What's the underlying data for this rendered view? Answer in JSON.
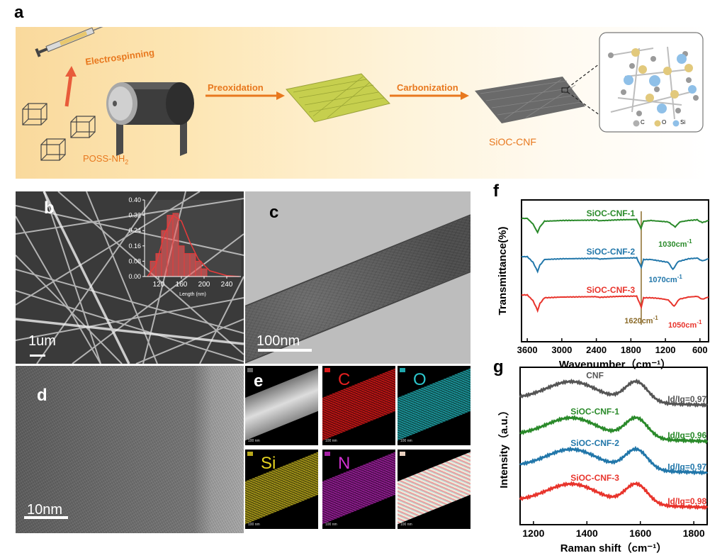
{
  "panel_labels": {
    "a": "a",
    "b": "b",
    "c": "c",
    "d": "d",
    "e": "e",
    "f": "f",
    "g": "g"
  },
  "schematic": {
    "electrospinning": "Electrospinning",
    "preoxidation": "Preoxidation",
    "carbonization": "Carbonization",
    "precursor_base": "POSS-NH",
    "precursor_sub": "2",
    "product": "SiOC-CNF",
    "legend": [
      {
        "label": "C",
        "color": "#b0b0b0"
      },
      {
        "label": "O",
        "color": "#e2c97c"
      },
      {
        "label": "Si",
        "color": "#8fc0e8"
      }
    ]
  },
  "sem": {
    "scale_bar": "1um"
  },
  "tem_c": {
    "scale_bar": "100nm"
  },
  "tem_d": {
    "scale_bar": "10nm"
  },
  "inset_histogram": {
    "chart_data": {
      "type": "bar",
      "xlabel": "Length  (nm)",
      "xticks": [
        120,
        160,
        200,
        240
      ],
      "yticks": [
        0.0,
        0.08,
        0.16,
        0.24,
        0.32,
        0.4
      ],
      "ytick_labels": [
        "0.00",
        "0.08",
        "0.16",
        "0.24",
        "0.32",
        "0.40"
      ],
      "xlim": [
        95,
        265
      ],
      "ylim": [
        0,
        0.4
      ],
      "bins": [
        {
          "x0": 105,
          "x1": 115,
          "v": 0.08
        },
        {
          "x0": 115,
          "x1": 125,
          "v": 0.12
        },
        {
          "x0": 125,
          "x1": 135,
          "v": 0.24
        },
        {
          "x0": 135,
          "x1": 145,
          "v": 0.32
        },
        {
          "x0": 145,
          "x1": 155,
          "v": 0.33
        },
        {
          "x0": 155,
          "x1": 165,
          "v": 0.16
        },
        {
          "x0": 165,
          "x1": 175,
          "v": 0.12
        },
        {
          "x0": 175,
          "x1": 185,
          "v": 0.12
        },
        {
          "x0": 185,
          "x1": 195,
          "v": 0.08
        },
        {
          "x0": 195,
          "x1": 205,
          "v": 0.04
        }
      ],
      "fit": [
        [
          100,
          0.0
        ],
        [
          115,
          0.06
        ],
        [
          130,
          0.22
        ],
        [
          145,
          0.32
        ],
        [
          160,
          0.29
        ],
        [
          175,
          0.18
        ],
        [
          190,
          0.09
        ],
        [
          210,
          0.03
        ],
        [
          240,
          0.005
        ],
        [
          262,
          0.0
        ]
      ]
    }
  },
  "eds": {
    "tiles": [
      {
        "label": "",
        "color": "#dddddd",
        "text_color": "#ffffff"
      },
      {
        "label": "C",
        "color": "#d81818",
        "text_color": "#e62020"
      },
      {
        "label": "O",
        "color": "#1fa8ad",
        "text_color": "#2cc6cc"
      },
      {
        "label": "Si",
        "color": "#b8a81c",
        "text_color": "#e6d420"
      },
      {
        "label": "N",
        "color": "#a420a4",
        "text_color": "#d030d0"
      },
      {
        "label": "",
        "color": "#e8d0c0",
        "text_color": "#ffffff"
      }
    ],
    "scale": "100 nm"
  },
  "chart_data": [
    {
      "type": "line",
      "xlabel": "Wavenumber（cm⁻¹）",
      "ylabel": "Transmittance(%)",
      "xlim": [
        3700,
        450
      ],
      "xticks": [
        3600,
        3000,
        2400,
        1800,
        1200,
        600
      ],
      "series": [
        {
          "name": "SiOC-CNF-1",
          "color": "#2a8a2a",
          "offset": 0.82,
          "points": [
            [
              3700,
              0.5
            ],
            [
              3600,
              0.5
            ],
            [
              3500,
              0.1
            ],
            [
              3420,
              -0.5
            ],
            [
              3380,
              -0.1
            ],
            [
              3300,
              0.3
            ],
            [
              3000,
              0.35
            ],
            [
              2400,
              0.38
            ],
            [
              2360,
              0.33
            ],
            [
              2000,
              0.4
            ],
            [
              1700,
              0.42
            ],
            [
              1625,
              -0.2
            ],
            [
              1580,
              0.3
            ],
            [
              1450,
              0.35
            ],
            [
              1300,
              0.3
            ],
            [
              1150,
              0.25
            ],
            [
              1030,
              -0.1
            ],
            [
              950,
              0.25
            ],
            [
              800,
              0.35
            ],
            [
              650,
              0.4
            ],
            [
              560,
              0.2
            ],
            [
              450,
              0.35
            ]
          ]
        },
        {
          "name": "SiOC-CNF-2",
          "color": "#2277aa",
          "offset": 0.55,
          "points": [
            [
              3700,
              0.5
            ],
            [
              3600,
              0.5
            ],
            [
              3500,
              0.1
            ],
            [
              3420,
              -0.55
            ],
            [
              3380,
              -0.1
            ],
            [
              3300,
              0.3
            ],
            [
              3000,
              0.35
            ],
            [
              2400,
              0.38
            ],
            [
              2360,
              0.33
            ],
            [
              2000,
              0.4
            ],
            [
              1700,
              0.42
            ],
            [
              1620,
              -0.25
            ],
            [
              1580,
              0.3
            ],
            [
              1450,
              0.3
            ],
            [
              1300,
              0.2
            ],
            [
              1150,
              0.1
            ],
            [
              1070,
              -0.4
            ],
            [
              980,
              0.15
            ],
            [
              800,
              0.35
            ],
            [
              650,
              0.4
            ],
            [
              560,
              0.2
            ],
            [
              450,
              0.35
            ]
          ]
        },
        {
          "name": "SiOC-CNF-3",
          "color": "#e8342c",
          "offset": 0.28,
          "points": [
            [
              3700,
              0.5
            ],
            [
              3600,
              0.5
            ],
            [
              3500,
              0.1
            ],
            [
              3420,
              -0.6
            ],
            [
              3380,
              -0.1
            ],
            [
              3300,
              0.3
            ],
            [
              3000,
              0.35
            ],
            [
              2400,
              0.38
            ],
            [
              2360,
              0.33
            ],
            [
              2000,
              0.4
            ],
            [
              1700,
              0.42
            ],
            [
              1620,
              -0.35
            ],
            [
              1580,
              0.3
            ],
            [
              1450,
              0.3
            ],
            [
              1300,
              0.25
            ],
            [
              1150,
              0.15
            ],
            [
              1050,
              -0.3
            ],
            [
              960,
              0.2
            ],
            [
              800,
              0.35
            ],
            [
              650,
              0.4
            ],
            [
              560,
              0.2
            ],
            [
              450,
              0.35
            ]
          ]
        }
      ],
      "annotations": [
        {
          "text": "1030cm",
          "sup": "-1",
          "x": 1030,
          "level": 0.67,
          "color": "#2a8a2a"
        },
        {
          "text": "1070cm",
          "sup": "-1",
          "x": 1200,
          "level": 0.42,
          "color": "#2277aa"
        },
        {
          "text": "1620cm",
          "sup": "-1",
          "x": 1620,
          "level": 0.13,
          "color": "#8b6b2a"
        },
        {
          "text": "1050cm",
          "sup": "-1",
          "x": 860,
          "level": 0.1,
          "color": "#e8342c"
        }
      ],
      "vline": 1620
    },
    {
      "type": "line",
      "xlabel": "Raman shift（cm⁻¹）",
      "ylabel": "Intensity（a.u.）",
      "xlim": [
        1150,
        1850
      ],
      "xticks": [
        1200,
        1400,
        1600,
        1800
      ],
      "series": [
        {
          "name": "CNF",
          "color": "#555555",
          "base": 0.76,
          "ratio": "Id/Ig=0.97"
        },
        {
          "name": "SiOC-CNF-1",
          "color": "#2a8a2a",
          "base": 0.53,
          "ratio": "Id/Ig=0.96"
        },
        {
          "name": "SiOC-CNF-2",
          "color": "#2277aa",
          "base": 0.33,
          "ratio": "Id/Ig=0.97"
        },
        {
          "name": "SiOC-CNF-3",
          "color": "#e8342c",
          "base": 0.11,
          "ratio": "Id/Ig=0.98"
        }
      ]
    }
  ]
}
